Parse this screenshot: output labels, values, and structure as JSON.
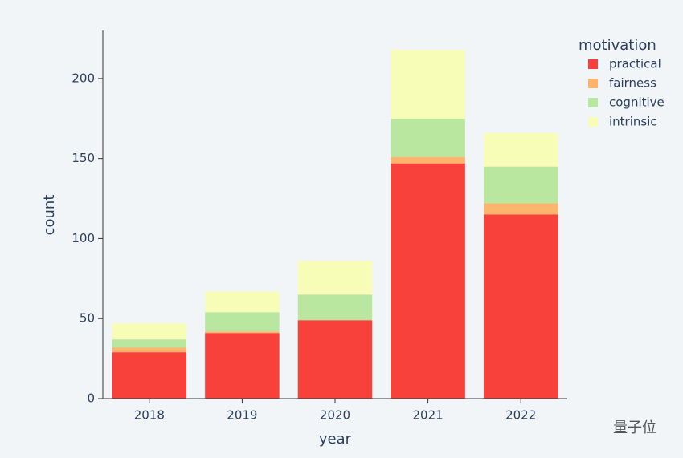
{
  "chart_data": {
    "type": "stacked_bar",
    "x_label": "year",
    "y_label": "count",
    "legend_title": "motivation",
    "categories": [
      "2018",
      "2019",
      "2020",
      "2021",
      "2022"
    ],
    "series": [
      {
        "name": "practical",
        "color": "#f8413a",
        "values": [
          29,
          41,
          49,
          147,
          115
        ]
      },
      {
        "name": "fairness",
        "color": "#fdb46c",
        "values": [
          3,
          1,
          0,
          4,
          7
        ]
      },
      {
        "name": "cognitive",
        "color": "#b9e7a0",
        "values": [
          5,
          12,
          16,
          24,
          23
        ]
      },
      {
        "name": "intrinsic",
        "color": "#f7fdb6",
        "values": [
          10,
          13,
          21,
          43,
          21
        ]
      }
    ],
    "ylim": [
      0,
      230
    ],
    "yticks": [
      0,
      50,
      100,
      150,
      200
    ],
    "legend_position": "top-right",
    "watermark": "量子位"
  }
}
